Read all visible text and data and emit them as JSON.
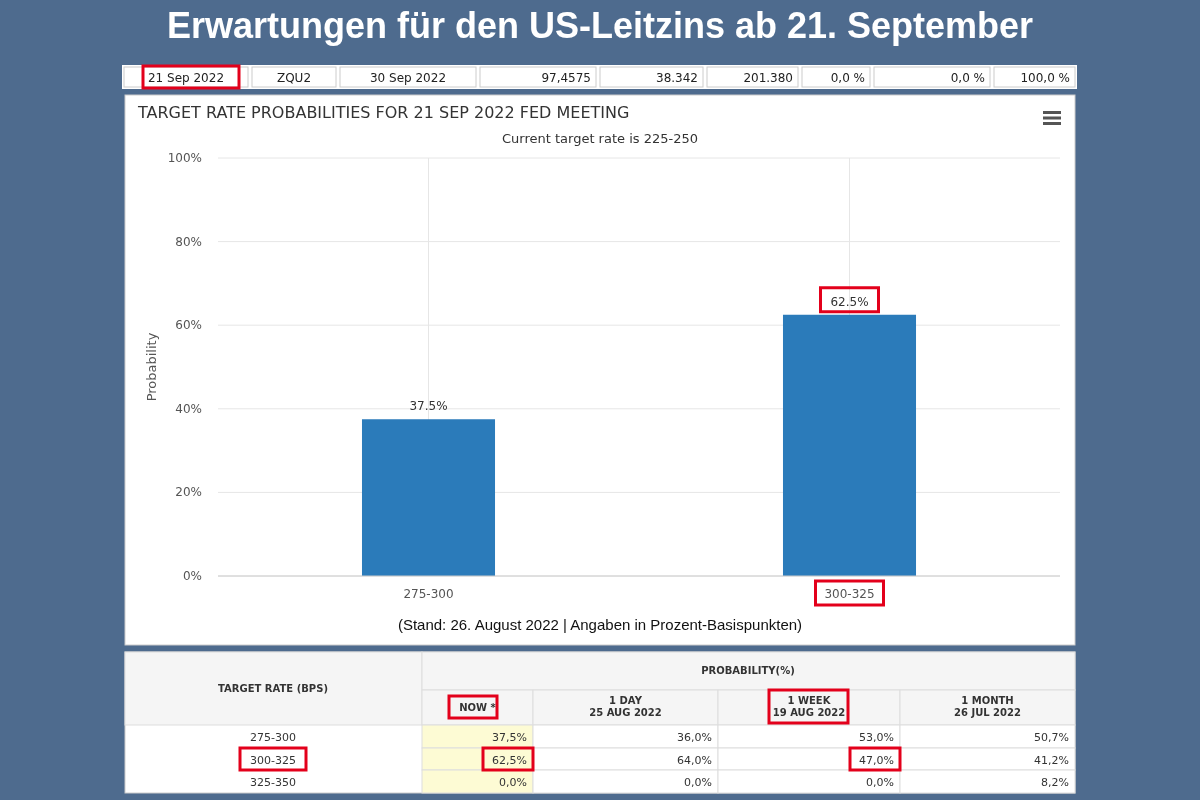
{
  "chart_data": [
    {
      "type": "other",
      "title": "Erwartungen für den US-Leitzins ab 21. September",
      "annotations": [
        "21 Sep 2022",
        "ZQU2",
        "30 Sep 2022",
        "97,4575",
        "38.342",
        "201.380",
        "0,0 %",
        "0,0 %",
        "100,0 %"
      ]
    },
    {
      "type": "bar",
      "title": "TARGET RATE PROBABILITIES FOR 21 SEP 2022 FED MEETING",
      "subtitle": "Current target rate is 225-250",
      "ylabel": "Probability",
      "categories": [
        "275-300",
        "300-325"
      ],
      "values": [
        37.5,
        62.5
      ],
      "value_labels": [
        "37.5%",
        "62.5%"
      ],
      "color": "#2b7bba",
      "ylim": [
        0,
        100
      ],
      "yticks": [
        {
          "value": 0,
          "label": "0%"
        },
        {
          "value": 20,
          "label": "20%"
        },
        {
          "value": 40,
          "label": "40%"
        },
        {
          "value": 60,
          "label": "60%"
        },
        {
          "value": 80,
          "label": "80%"
        },
        {
          "value": 100,
          "label": "100%"
        }
      ],
      "grid": true,
      "annotations": [
        "(Stand: 26. August 2022 | Angaben in Prozent-Basispunkten)"
      ]
    },
    {
      "type": "other",
      "xlabel": "PROBABILITY(%)",
      "ylabel": "TARGET RATE (BPS)",
      "categories": [
        "NOW *",
        "1 DAY\n25 AUG 2022",
        "1 WEEK\n19 AUG 2022",
        "1 MONTH\n26 JUL 2022"
      ],
      "y_categories": [
        "275-300",
        "300-325",
        "325-350"
      ],
      "cell_labels": [
        [
          "37,5%",
          "36,0%",
          "53,0%",
          "50,7%"
        ],
        [
          "62,5%",
          "64,0%",
          "47,0%",
          "41,2%"
        ],
        [
          "0,0%",
          "0,0%",
          "0,0%",
          "8,2%"
        ]
      ]
    }
  ]
}
